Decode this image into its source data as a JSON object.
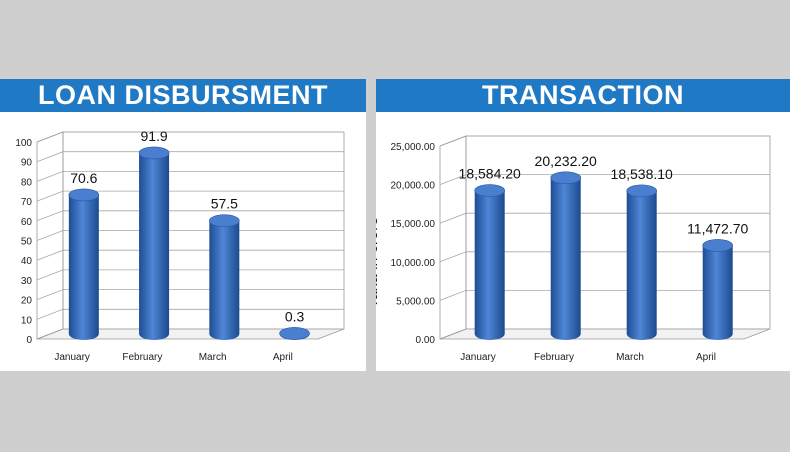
{
  "charts": [
    {
      "id": "loan",
      "banner": "LOAN DISBURSMENT",
      "chart_data": {
        "type": "bar",
        "title": "LOAN DISBURSMENT",
        "categories": [
          "January",
          "February",
          "March",
          "April"
        ],
        "values": [
          70.6,
          91.9,
          57.5,
          0.3
        ],
        "data_labels": [
          "70.6",
          "91.9",
          "57.5",
          "0.3"
        ],
        "yticks": [
          "0",
          "10",
          "20",
          "30",
          "40",
          "50",
          "60",
          "70",
          "80",
          "90",
          "100"
        ],
        "ylim": [
          0,
          100
        ],
        "ylabel": "",
        "grid": true,
        "bar_color": "#3a6fc0"
      }
    },
    {
      "id": "transaction",
      "banner": "TRANSACTION",
      "chart_data": {
        "type": "bar",
        "title": "TRANSACTION",
        "categories": [
          "January",
          "February",
          "March",
          "April"
        ],
        "values": [
          18584.2,
          20232.2,
          18538.1,
          11472.7
        ],
        "data_labels": [
          "18,584.20",
          "20,232.20",
          "18,538.10",
          "11,472.70"
        ],
        "yticks": [
          "0.00",
          "5,000.00",
          "10,000.00",
          "15,000.00",
          "20,000.00",
          "25,000.00"
        ],
        "ylim": [
          0,
          25000
        ],
        "ylabel": "Taka in crore",
        "grid": true,
        "bar_color": "#3a6fc0"
      }
    }
  ]
}
